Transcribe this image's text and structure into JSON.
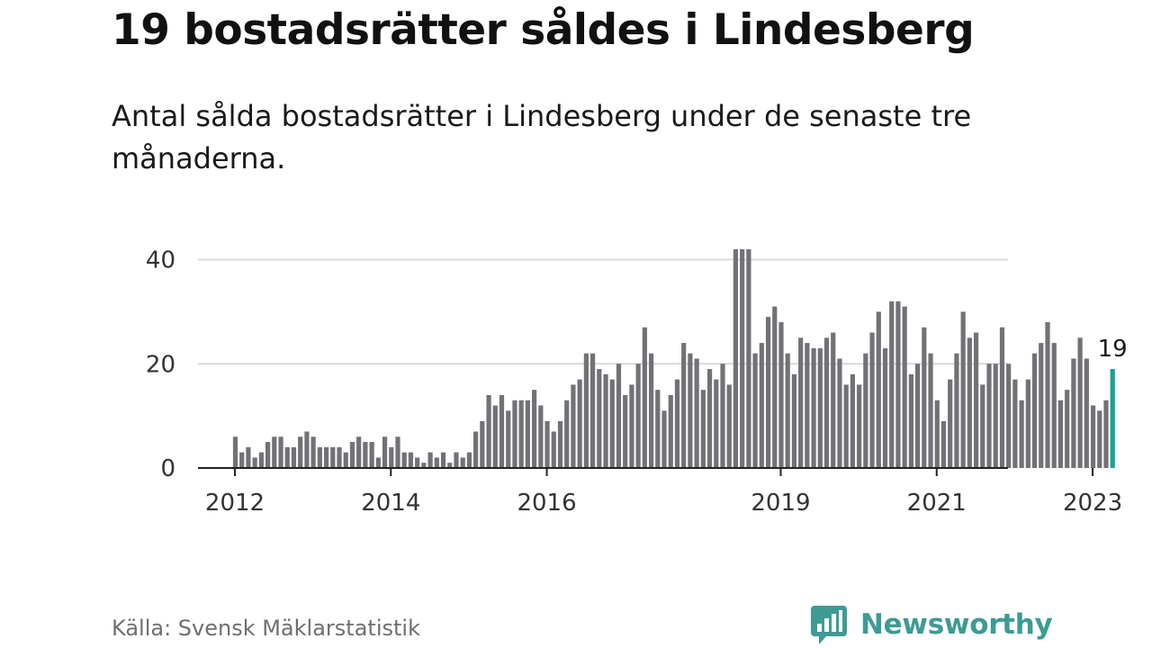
{
  "header": {
    "title": "19 bostadsrätter såldes i Lindesberg",
    "subtitle": "Antal sålda bostadsrätter i Lindesberg under de senaste tre månaderna."
  },
  "footer": {
    "source": "Källa: Svensk Mäklarstatistik",
    "brand": "Newsworthy",
    "brand_icon": "bar-chart-speech-bubble-icon"
  },
  "colors": {
    "bar": "#727176",
    "highlight": "#17a198",
    "grid": "#d9d9d9",
    "axis": "#222222",
    "brand": "#3d9b94"
  },
  "chart_data": {
    "type": "bar",
    "title": "",
    "xlabel": "",
    "ylabel": "",
    "ylim": [
      0,
      42
    ],
    "y_ticks": [
      0,
      20,
      40
    ],
    "x_start": "2012-01",
    "x_tick_labels": [
      {
        "label": "2012",
        "month": "2012-01"
      },
      {
        "label": "2014",
        "month": "2014-01"
      },
      {
        "label": "2016",
        "month": "2016-01"
      },
      {
        "label": "2019",
        "month": "2019-01"
      },
      {
        "label": "2021",
        "month": "2021-01"
      },
      {
        "label": "2023",
        "month": "2023-01"
      }
    ],
    "values": [
      6,
      3,
      4,
      2,
      3,
      5,
      6,
      6,
      4,
      4,
      6,
      7,
      6,
      4,
      4,
      4,
      4,
      3,
      5,
      6,
      5,
      5,
      2,
      6,
      4,
      6,
      3,
      3,
      2,
      1,
      3,
      2,
      3,
      1,
      3,
      2,
      3,
      7,
      9,
      14,
      12,
      14,
      11,
      13,
      13,
      13,
      15,
      12,
      9,
      7,
      9,
      13,
      16,
      17,
      22,
      22,
      19,
      18,
      17,
      20,
      14,
      16,
      20,
      27,
      22,
      15,
      11,
      14,
      17,
      24,
      22,
      21,
      15,
      19,
      17,
      20,
      16,
      42,
      42,
      42,
      22,
      24,
      29,
      31,
      28,
      22,
      18,
      25,
      24,
      23,
      23,
      25,
      26,
      21,
      16,
      18,
      16,
      22,
      26,
      30,
      23,
      32,
      32,
      31,
      18,
      20,
      27,
      22,
      13,
      9,
      17,
      22,
      30,
      25,
      26,
      16,
      20,
      20,
      27,
      20,
      17,
      13,
      17,
      22,
      24,
      28,
      24,
      13,
      15,
      21,
      25,
      21,
      12,
      11,
      13,
      19
    ],
    "highlight": {
      "month": "2023-04",
      "value": 19,
      "label": "19"
    }
  }
}
